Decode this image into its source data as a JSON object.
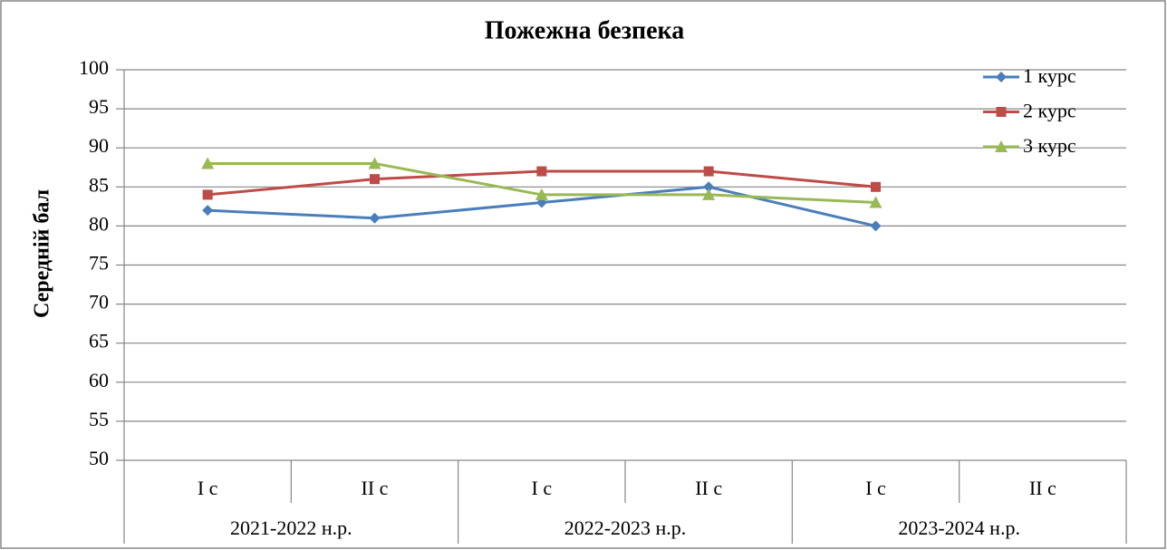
{
  "chart_data": {
    "type": "line",
    "title": "Пожежна  безпека",
    "y_label": "Середній бал",
    "categories": [
      "I с",
      "II с",
      "I с",
      "II с",
      "I с",
      "II с"
    ],
    "category_groups": [
      "2021-2022 н.р.",
      "2022-2023 н.р.",
      "2023-2024 н.р."
    ],
    "series": [
      {
        "name": "1 курс",
        "color": "#4a7ebb",
        "marker": "diamond",
        "values": [
          82,
          81,
          83,
          85,
          80,
          null
        ]
      },
      {
        "name": "2 курс",
        "color": "#be4b48",
        "marker": "square",
        "values": [
          84,
          86,
          87,
          87,
          85,
          null
        ]
      },
      {
        "name": "3 курс",
        "color": "#98b954",
        "marker": "triangle",
        "values": [
          88,
          88,
          84,
          84,
          83,
          null
        ]
      }
    ],
    "ylim": [
      50,
      100
    ],
    "yticks": [
      50,
      55,
      60,
      65,
      70,
      75,
      80,
      85,
      90,
      95,
      100
    ],
    "grid": true,
    "legend": "top-right"
  }
}
